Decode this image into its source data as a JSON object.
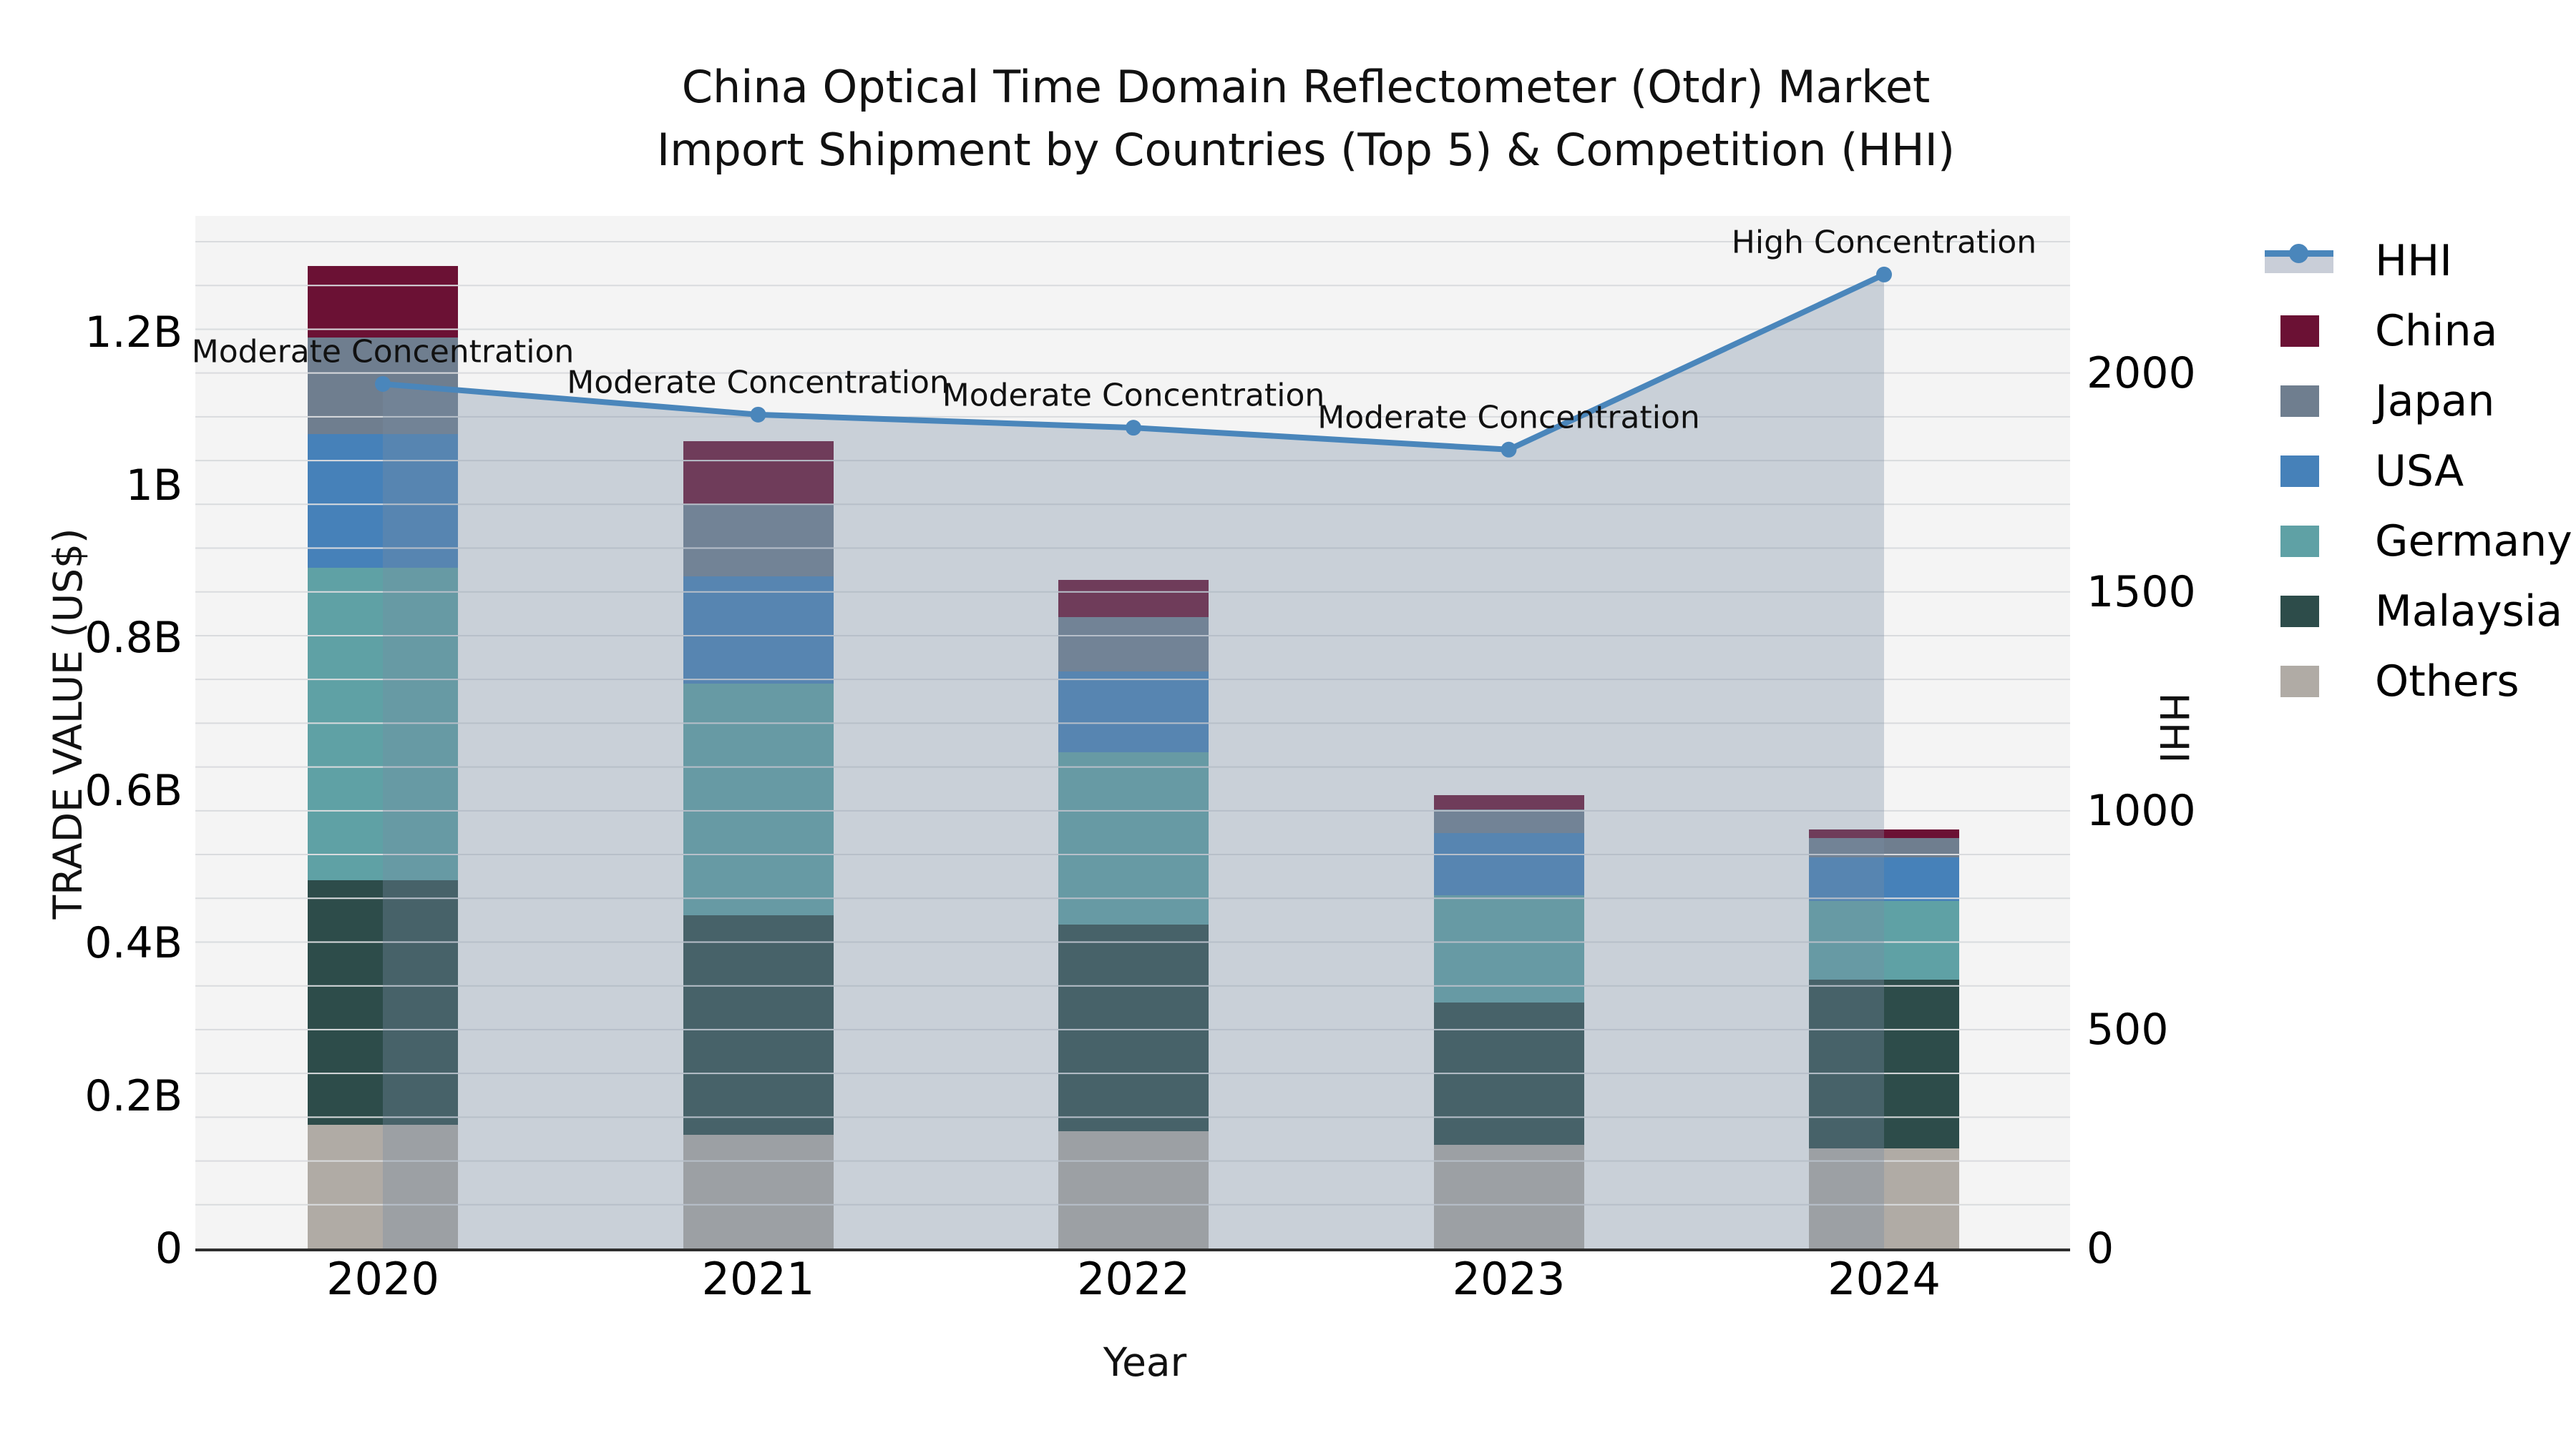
{
  "title": {
    "line1": "China Optical Time Domain Reflectometer (Otdr) Market",
    "line2": "Import Shipment by Countries (Top 5) & Competition (HHI)"
  },
  "axes": {
    "x_title": "Year",
    "y_left_title": "TRADE VALUE (US$)",
    "y_right_title": "HHI",
    "y_left_ticks": [
      {
        "label": "0",
        "value": 0
      },
      {
        "label": "0.2B",
        "value": 0.2
      },
      {
        "label": "0.4B",
        "value": 0.4
      },
      {
        "label": "0.6B",
        "value": 0.6
      },
      {
        "label": "0.8B",
        "value": 0.8
      },
      {
        "label": "1B",
        "value": 1.0
      },
      {
        "label": "1.2B",
        "value": 1.2
      }
    ],
    "y_right_ticks": [
      {
        "label": "0",
        "value": 0
      },
      {
        "label": "500",
        "value": 500
      },
      {
        "label": "1000",
        "value": 1000
      },
      {
        "label": "1500",
        "value": 1500
      },
      {
        "label": "2000",
        "value": 2000
      }
    ]
  },
  "chart_data": {
    "type": "bar",
    "subtype": "stacked-bars-with-line",
    "categories": [
      "2020",
      "2021",
      "2022",
      "2023",
      "2024"
    ],
    "bar_value_unit": "USD billions",
    "ylim_left": [
      0,
      1.353
    ],
    "ylim_right": [
      0,
      2360
    ],
    "grid": "on",
    "legend_position": "right",
    "series": [
      {
        "name": "Others",
        "color": "#b0aba5",
        "values": [
          0.162,
          0.149,
          0.154,
          0.136,
          0.131
        ]
      },
      {
        "name": "Malaysia",
        "color": "#2d4c4a",
        "values": [
          0.32,
          0.288,
          0.27,
          0.186,
          0.221
        ]
      },
      {
        "name": "Germany",
        "color": "#5fa1a5",
        "values": [
          0.41,
          0.303,
          0.226,
          0.141,
          0.103
        ]
      },
      {
        "name": "USA",
        "color": "#4681b9",
        "values": [
          0.175,
          0.141,
          0.106,
          0.081,
          0.057
        ]
      },
      {
        "name": "Japan",
        "color": "#6f7e8f",
        "values": [
          0.126,
          0.093,
          0.071,
          0.031,
          0.026
        ]
      },
      {
        "name": "China",
        "color": "#6b1134",
        "values": [
          0.094,
          0.084,
          0.049,
          0.019,
          0.011
        ]
      }
    ],
    "hhi_line": {
      "name": "HHI",
      "line_color": "#4a86bb",
      "area_color": "rgba(121,139,164,0.35)",
      "values": [
        1975,
        1905,
        1875,
        1825,
        2225
      ],
      "annotations": [
        "Moderate Concentration",
        "Moderate Concentration",
        "Moderate Concentration",
        "Moderate Concentration",
        "High Concentration"
      ]
    },
    "legend_order": [
      "HHI",
      "China",
      "Japan",
      "USA",
      "Germany",
      "Malaysia",
      "Others"
    ]
  }
}
